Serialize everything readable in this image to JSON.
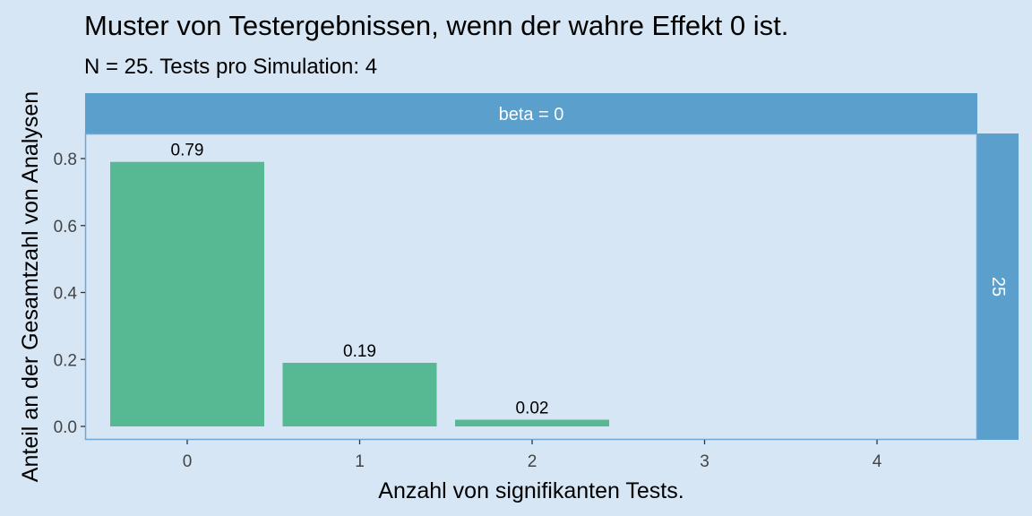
{
  "chart_data": {
    "type": "bar",
    "title": "Muster von Testergebnissen, wenn der wahre Effekt 0 ist.",
    "subtitle": "N = 25. Tests pro Simulation: 4",
    "xlabel": "Anzahl von signifikanten Tests.",
    "ylabel": "Anteil an der Gesamtzahl von Analysen",
    "categories": [
      "0",
      "1",
      "2",
      "3",
      "4"
    ],
    "values": [
      0.79,
      0.19,
      0.02,
      0,
      0
    ],
    "data_labels": [
      "0.79",
      "0.19",
      "0.02",
      "",
      ""
    ],
    "y_ticks": [
      "0.0",
      "0.2",
      "0.4",
      "0.6",
      "0.8"
    ],
    "ylim": [
      0,
      0.87
    ],
    "grid": false,
    "facet_top": "beta = 0",
    "facet_right": "25",
    "colors": {
      "bar": "#57b994",
      "strip": "#5b9fcd",
      "background": "#d6e6f5",
      "panel_border": "#6fa8d8"
    }
  }
}
